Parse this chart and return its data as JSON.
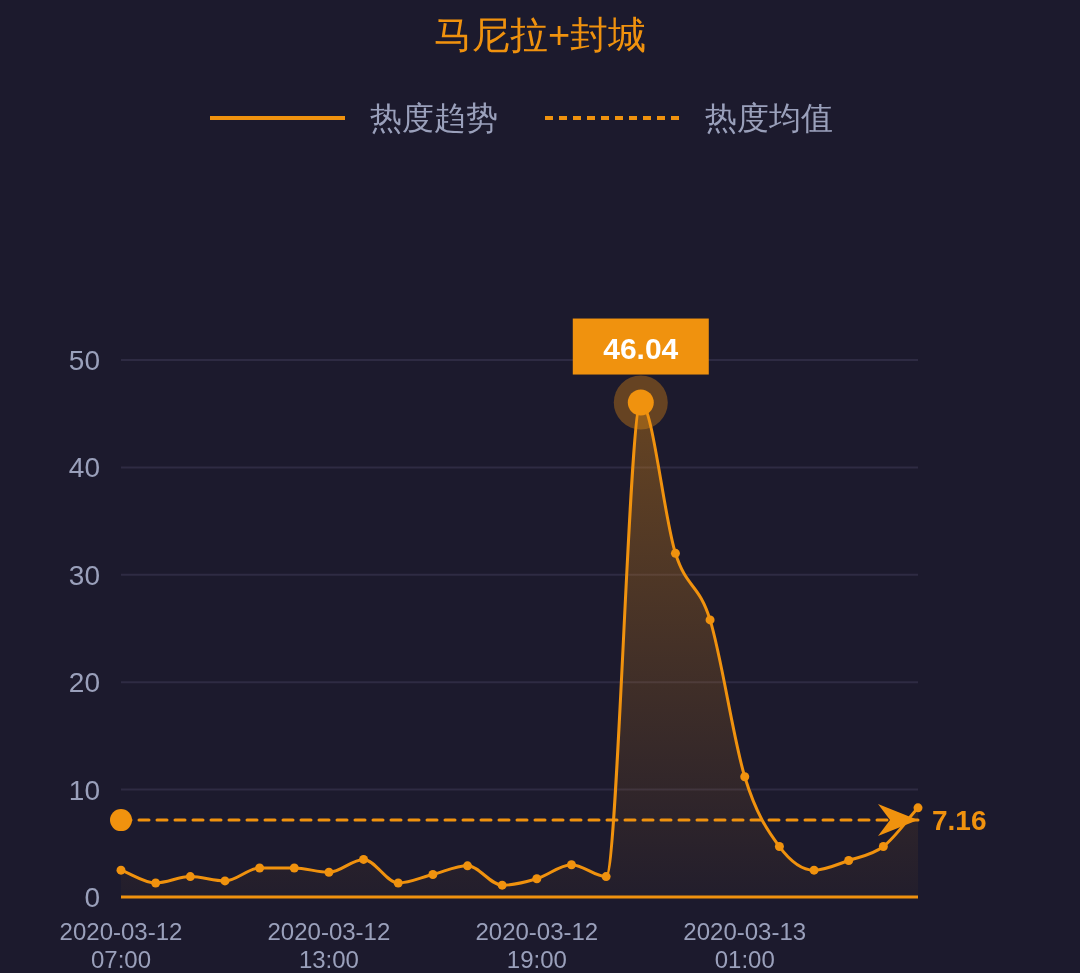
{
  "chart_data": {
    "type": "area",
    "title": "马尼拉+封城",
    "x": [
      "2020-03-12T07:00",
      "2020-03-12T08:00",
      "2020-03-12T09:00",
      "2020-03-12T10:00",
      "2020-03-12T11:00",
      "2020-03-12T12:00",
      "2020-03-12T13:00",
      "2020-03-12T14:00",
      "2020-03-12T15:00",
      "2020-03-12T16:00",
      "2020-03-12T17:00",
      "2020-03-12T18:00",
      "2020-03-12T19:00",
      "2020-03-12T20:00",
      "2020-03-12T21:00",
      "2020-03-12T22:00",
      "2020-03-12T23:00",
      "2020-03-13T00:00",
      "2020-03-13T01:00",
      "2020-03-13T02:00",
      "2020-03-13T03:00",
      "2020-03-13T04:00",
      "2020-03-13T05:00",
      "2020-03-13T06:00"
    ],
    "series": [
      {
        "name": "热度趋势",
        "color": "#f0920e",
        "values": [
          2.5,
          1.3,
          1.9,
          1.5,
          2.7,
          2.7,
          2.3,
          3.5,
          1.3,
          2.1,
          2.9,
          1.1,
          1.7,
          3.0,
          1.9,
          46.04,
          32.0,
          25.8,
          11.2,
          4.7,
          2.5,
          3.4,
          4.7,
          8.3
        ]
      },
      {
        "name": "热度均值",
        "type": "line",
        "line_style": "dashed",
        "marker": "none",
        "color": "#f0920e",
        "values": [
          7.16,
          7.16,
          7.16,
          7.16,
          7.16,
          7.16,
          7.16,
          7.16,
          7.16,
          7.16,
          7.16,
          7.16,
          7.16,
          7.16,
          7.16,
          7.16,
          7.16,
          7.16,
          7.16,
          7.16,
          7.16,
          7.16,
          7.16,
          7.16
        ],
        "value_labels": [
          null,
          null,
          null,
          null,
          null,
          null,
          null,
          null,
          null,
          null,
          null,
          null,
          null,
          null,
          null,
          null,
          null,
          null,
          null,
          null,
          null,
          null,
          null,
          "7.16"
        ]
      }
    ],
    "ref_lines": [
      {
        "axis": "y",
        "value": 0,
        "color": "#f0920e",
        "line_style": "solid"
      }
    ],
    "annotations": [
      {
        "text": "46.04",
        "x": "2020-03-12T22:00",
        "y": 46.04
      }
    ],
    "xlim": [
      "2020-03-12T07:00",
      "2020-03-13T06:00"
    ],
    "xticks": [
      {
        "value": "2020-03-12T07:00",
        "label": "2020-03-12 07:00"
      },
      {
        "value": "2020-03-12T13:00",
        "label": "2020-03-12 13:00"
      },
      {
        "value": "2020-03-12T19:00",
        "label": "2020-03-12 19:00"
      },
      {
        "value": "2020-03-13T01:00",
        "label": "2020-03-13 01:00"
      }
    ],
    "ylim": [
      0,
      50
    ],
    "yticks": [
      0,
      10,
      20,
      30,
      40,
      50
    ],
    "grid": "y",
    "legend": "top",
    "marker": "circle",
    "line_style": "solid"
  }
}
